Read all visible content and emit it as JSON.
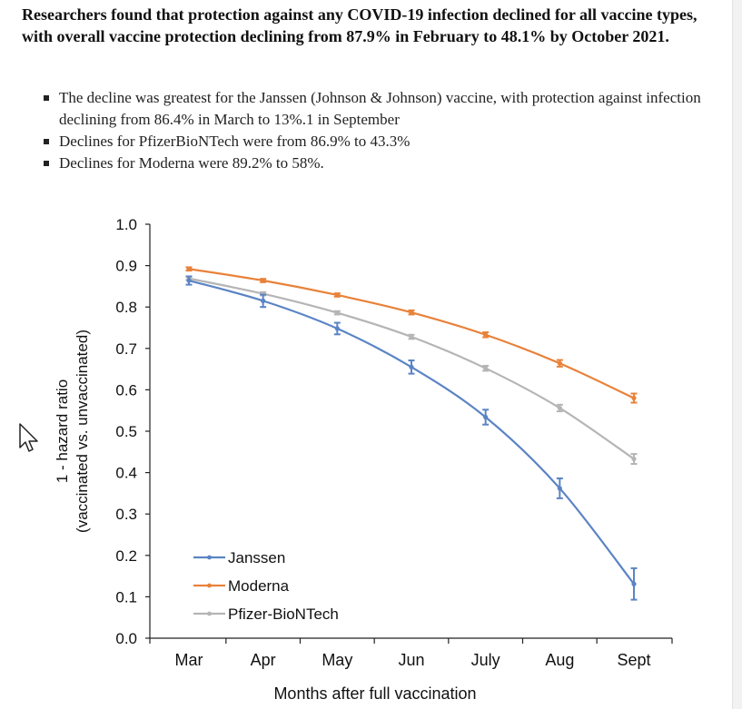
{
  "article": {
    "headline": "Researchers found that protection against any COVID-19 infection declined for all vaccine types, with overall vaccine protection declining from 87.9% in February to 48.1% by October 2021.",
    "bullets": [
      "The decline was greatest for the Janssen  (Johnson & Johnson) vaccine, with protection against infection declining from 86.4% in March to 13%.1 in September",
      "Declines for PfizerBioNTech were from 86.9% to 43.3%",
      "Declines for Moderna were 89.2% to 58%."
    ]
  },
  "chart_data": {
    "type": "line",
    "title": "",
    "xlabel": "Months after full vaccination",
    "ylabel": "1 - hazard ratio",
    "ylabel2": "(vaccinated vs. unvaccinated)",
    "categories": [
      "Mar",
      "Apr",
      "May",
      "Jun",
      "July",
      "Aug",
      "Sept"
    ],
    "ylim": [
      0,
      1.0
    ],
    "yticks": [
      "0.0",
      "0.1",
      "0.2",
      "0.3",
      "0.4",
      "0.5",
      "0.6",
      "0.7",
      "0.8",
      "0.9",
      "1.0"
    ],
    "grid": false,
    "legend_position": "bottom-left",
    "series": [
      {
        "name": "Janssen",
        "color": "#5b84c4",
        "values": [
          0.864,
          0.815,
          0.748,
          0.655,
          0.534,
          0.362,
          0.131
        ],
        "err": [
          0.01,
          0.015,
          0.014,
          0.016,
          0.018,
          0.024,
          0.038
        ]
      },
      {
        "name": "Moderna",
        "color": "#e8823a",
        "values": [
          0.892,
          0.864,
          0.829,
          0.787,
          0.733,
          0.664,
          0.58
        ],
        "err": [
          0.004,
          0.004,
          0.004,
          0.005,
          0.006,
          0.008,
          0.011
        ]
      },
      {
        "name": "Pfizer-BioNTech",
        "color": "#b5b5b5",
        "values": [
          0.869,
          0.832,
          0.786,
          0.728,
          0.652,
          0.556,
          0.433
        ],
        "err": [
          0.004,
          0.004,
          0.004,
          0.005,
          0.006,
          0.008,
          0.012
        ]
      }
    ]
  }
}
